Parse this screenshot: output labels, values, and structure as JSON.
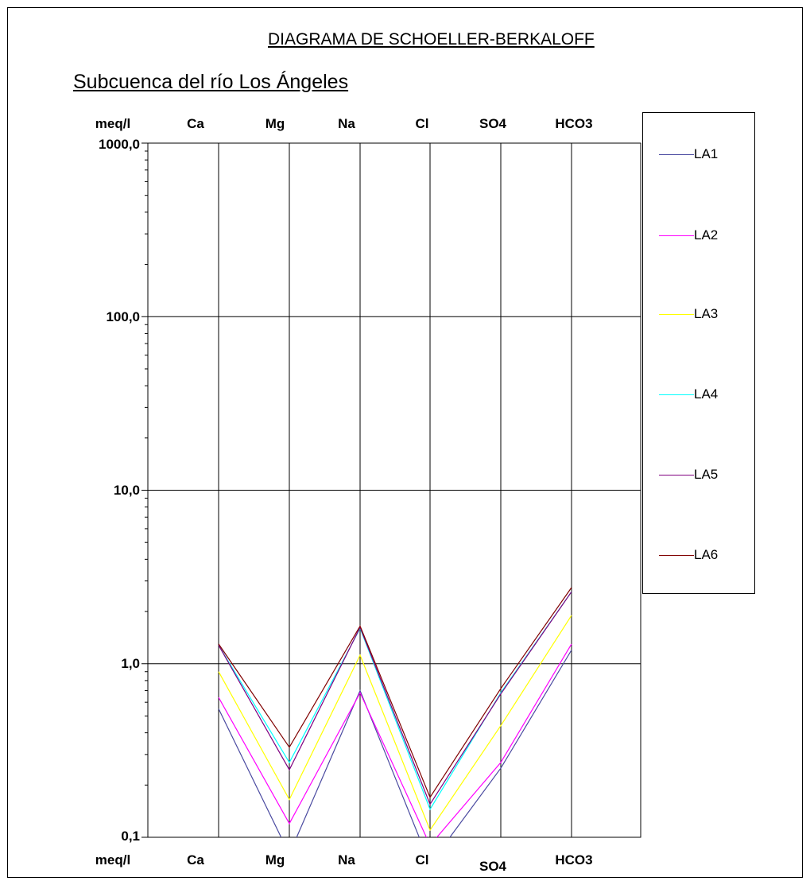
{
  "titles": {
    "main": "DIAGRAMA DE SCHOELLER-BERKALOFF",
    "sub": "Subcuenca del río Los Ángeles"
  },
  "headers": {
    "top": [
      "meq/l",
      "Ca",
      "Mg",
      "Na",
      "Cl",
      "SO4",
      "HCO3"
    ],
    "bottom": [
      "meq/l",
      "Ca",
      "Mg",
      "Na",
      "Cl",
      "SO4",
      "HCO3"
    ]
  },
  "y_tick_labels": [
    "1000,0",
    "100,0",
    "10,0",
    "1,0",
    "0,1"
  ],
  "chart_data": {
    "type": "line",
    "title": "DIAGRAMA DE SCHOELLER-BERKALOFF",
    "subtitle": "Subcuenca del río Los Ángeles",
    "ylabel": "meq/l",
    "yscale": "log",
    "ylim": [
      0.1,
      1000
    ],
    "y_ticks": [
      1000,
      100,
      10,
      1,
      0.1
    ],
    "categories": [
      "Ca",
      "Mg",
      "Na",
      "Cl",
      "SO4",
      "HCO3"
    ],
    "legend_position": "right",
    "grid": true,
    "series": [
      {
        "name": "LA1",
        "color": "#4a4aa0",
        "values": [
          0.55,
          0.08,
          0.7,
          0.07,
          0.25,
          1.2
        ]
      },
      {
        "name": "LA2",
        "color": "#ff00ff",
        "values": [
          0.64,
          0.12,
          0.68,
          0.09,
          0.27,
          1.3
        ]
      },
      {
        "name": "LA3",
        "color": "#ffff00",
        "values": [
          0.9,
          0.165,
          1.12,
          0.11,
          0.44,
          1.9
        ]
      },
      {
        "name": "LA4",
        "color": "#00ffff",
        "values": [
          1.28,
          0.27,
          1.6,
          0.145,
          0.68,
          2.6
        ]
      },
      {
        "name": "LA5",
        "color": "#800080",
        "values": [
          1.28,
          0.245,
          1.62,
          0.155,
          0.67,
          2.6
        ]
      },
      {
        "name": "LA6",
        "color": "#800000",
        "values": [
          1.3,
          0.33,
          1.65,
          0.17,
          0.72,
          2.75
        ]
      }
    ]
  }
}
